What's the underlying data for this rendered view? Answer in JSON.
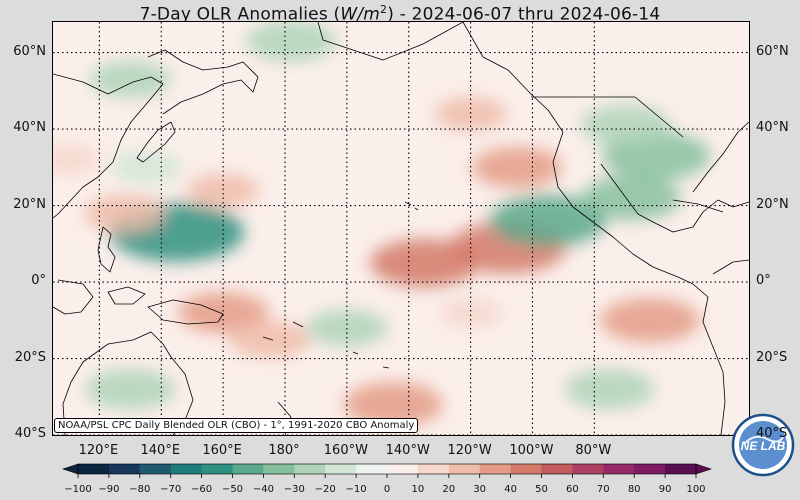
{
  "title": {
    "prefix": "7-Day OLR Anomalies (",
    "unit_base": "W/m",
    "unit_exp": "2",
    "suffix": ") - 2024-06-07 thru 2024-06-14"
  },
  "credit_text": "NOAA/PSL CPC Daily Blended OLR (CBO) - 1°, 1991-2020 CBO Anomaly",
  "logo_text": "NE LAB",
  "map": {
    "lon_range": [
      105,
      330
    ],
    "lat_range": [
      -40,
      68
    ],
    "lat_gridlines": [
      60,
      40,
      20,
      0,
      -20,
      -40
    ],
    "lon_gridlines": [
      120,
      140,
      160,
      180,
      200,
      220,
      240,
      260,
      280
    ],
    "lat_labels": [
      "60°N",
      "40°N",
      "20°N",
      "0°",
      "20°S",
      "40°S"
    ],
    "lon_labels": [
      "120°E",
      "140°E",
      "160°E",
      "180°",
      "160°W",
      "140°W",
      "120°W",
      "100°W",
      "80°W"
    ]
  },
  "colorbar": {
    "ticks": [
      "−100",
      "−90",
      "−80",
      "−70",
      "−60",
      "−50",
      "−40",
      "−30",
      "−20",
      "−10",
      "0",
      "10",
      "20",
      "30",
      "40",
      "50",
      "60",
      "70",
      "80",
      "90",
      "100"
    ],
    "colors": [
      "#0b2540",
      "#17375c",
      "#1f5a6e",
      "#1f7c7a",
      "#2e9080",
      "#5aa98c",
      "#86bf9e",
      "#afd3b8",
      "#d2e6d8",
      "#edf4ef",
      "#fbefeb",
      "#f6d7cc",
      "#eebca9",
      "#e49c86",
      "#d47a69",
      "#c25a5e",
      "#ad3f63",
      "#962a67",
      "#7c1a62",
      "#5a0e52"
    ],
    "range": [
      -100,
      100
    ]
  },
  "anomaly_features": [
    {
      "lon": 252,
      "lat": 9,
      "value": 45
    },
    {
      "lon": 225,
      "lat": 5,
      "value": 40
    },
    {
      "lon": 145,
      "lat": 13,
      "value": -55
    },
    {
      "lon": 265,
      "lat": 16,
      "value": -45
    },
    {
      "lon": 292,
      "lat": 22,
      "value": -35
    },
    {
      "lon": 300,
      "lat": 33,
      "value": -40
    },
    {
      "lon": 290,
      "lat": 41,
      "value": -30
    },
    {
      "lon": 182,
      "lat": 63,
      "value": -30
    },
    {
      "lon": 130,
      "lat": 53,
      "value": -25
    },
    {
      "lon": 135,
      "lat": 30,
      "value": -20
    },
    {
      "lon": 160,
      "lat": 24,
      "value": 20
    },
    {
      "lon": 128,
      "lat": 18,
      "value": 25
    },
    {
      "lon": 240,
      "lat": 44,
      "value": 20
    },
    {
      "lon": 255,
      "lat": 30,
      "value": 30
    },
    {
      "lon": 160,
      "lat": -8,
      "value": 30
    },
    {
      "lon": 175,
      "lat": -15,
      "value": 25
    },
    {
      "lon": 200,
      "lat": -12,
      "value": -25
    },
    {
      "lon": 130,
      "lat": -28,
      "value": -30
    },
    {
      "lon": 215,
      "lat": -32,
      "value": 35
    },
    {
      "lon": 240,
      "lat": -8,
      "value": 15
    },
    {
      "lon": 298,
      "lat": -10,
      "value": 35
    },
    {
      "lon": 285,
      "lat": -28,
      "value": -30
    },
    {
      "lon": 110,
      "lat": 32,
      "value": 15
    }
  ]
}
